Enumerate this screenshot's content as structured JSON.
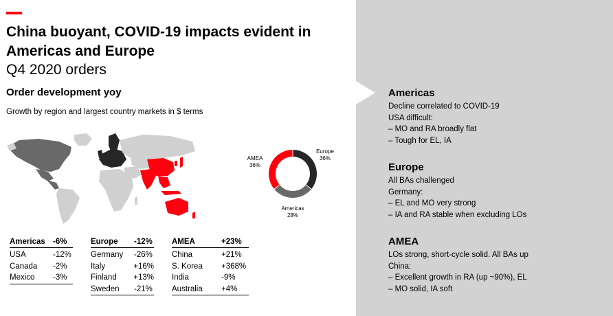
{
  "slide": {
    "title": "China buoyant, COVID-19 impacts evident in Americas and Europe",
    "subtitle": "Q4 2020 orders",
    "section_heading": "Order development yoy",
    "caption": "Growth by region and largest country markets in $ terms"
  },
  "colors": {
    "accent": "#ff000f",
    "americas": "#696969",
    "europe": "#262626",
    "amea": "#ff000f",
    "map_base": "#d0d0d0",
    "panel": "#d2d2d2"
  },
  "chart_data": {
    "type": "pie",
    "donut": true,
    "slices": [
      {
        "label": "Europe",
        "value": 36,
        "value_label": "36%"
      },
      {
        "label": "Americas",
        "value": 28,
        "value_label": "28%"
      },
      {
        "label": "AMEA",
        "value": 36,
        "value_label": "36%"
      }
    ]
  },
  "tables": [
    {
      "region": "Americas",
      "region_value": "-6%",
      "rows": [
        {
          "country": "USA",
          "value": "-12%"
        },
        {
          "country": "Canada",
          "value": "-2%"
        },
        {
          "country": "Mexico",
          "value": "-3%"
        }
      ]
    },
    {
      "region": "Europe",
      "region_value": "-12%",
      "rows": [
        {
          "country": "Germany",
          "value": "-26%"
        },
        {
          "country": "Italy",
          "value": "+16%"
        },
        {
          "country": "Finland",
          "value": "+13%"
        },
        {
          "country": "Sweden",
          "value": "-21%"
        }
      ]
    },
    {
      "region": "AMEA",
      "region_value": "+23%",
      "rows": [
        {
          "country": "China",
          "value": "+21%"
        },
        {
          "country": "S. Korea",
          "value": "+368%"
        },
        {
          "country": "India",
          "value": "-9%"
        },
        {
          "country": "Australia",
          "value": "+4%"
        }
      ]
    }
  ],
  "commentary": [
    {
      "heading": "Americas",
      "lines": [
        "Decline correlated to COVID-19",
        "USA difficult:",
        "–  MO and RA broadly flat",
        "–  Tough for EL, IA"
      ]
    },
    {
      "heading": "Europe",
      "lines": [
        "All BAs challenged",
        "Germany:",
        "–  EL and MO very strong",
        "–  IA and RA stable when excluding LOs"
      ]
    },
    {
      "heading": "AMEA",
      "lines": [
        "LOs strong, short-cycle solid. All BAs up",
        "China:",
        "–  Excellent growth in RA (up ~90%), EL",
        "–  MO solid, IA soft"
      ]
    }
  ]
}
